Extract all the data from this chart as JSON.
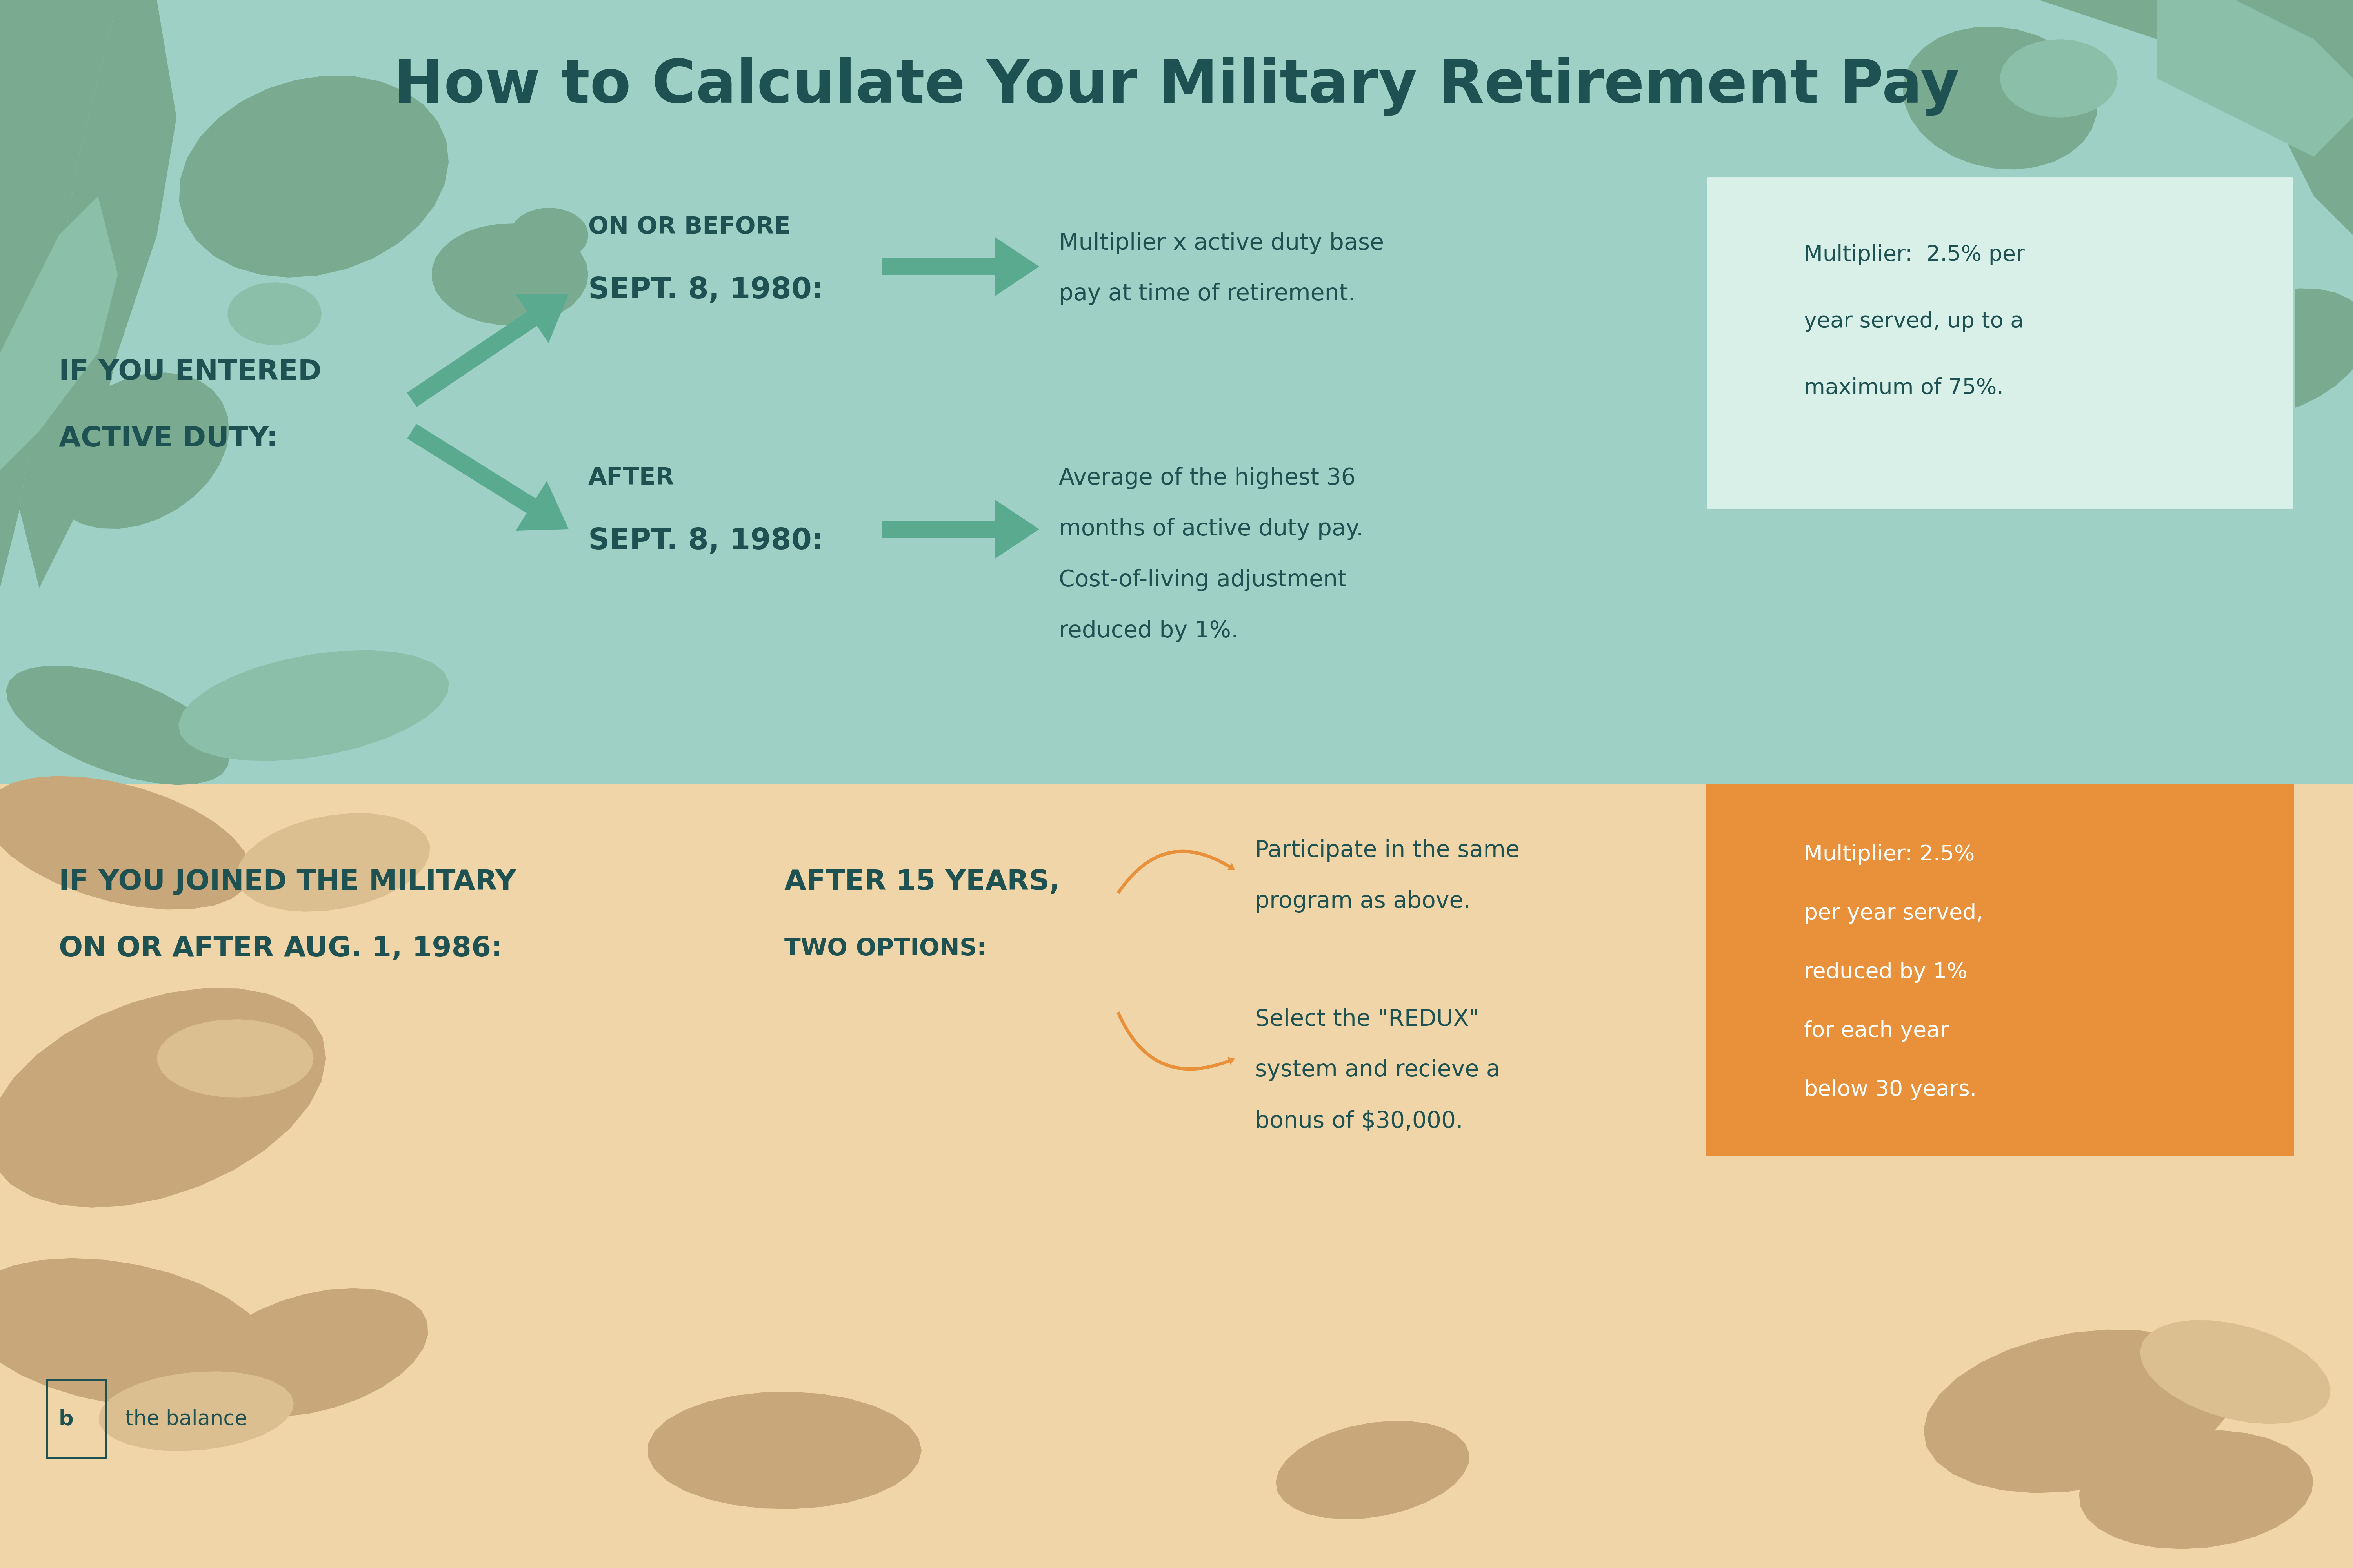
{
  "title": "How to Calculate Your Military Retirement Pay",
  "title_color": "#1e5252",
  "title_fontsize": 110,
  "bg_top_color": "#9ed0c5",
  "bg_bottom_color": "#f0d5a8",
  "camo_top_dark": "#7aaa90",
  "camo_top_light": "#8bbfaa",
  "camo_bottom_dark": "#c8a87a",
  "camo_bottom_light": "#dbbf90",
  "text_dark": "#1e5252",
  "arrow_green": "#5aaa90",
  "arrow_orange": "#e8903a",
  "box_green_bg": "#d8f0e8",
  "box_green_border": "#9ed0c5",
  "box_orange_bg": "#e8903a",
  "box_orange_text": "#ffffff",
  "top_label_line1": "If you entered",
  "top_label_line2": "active duty:",
  "branch1_small": "On or before",
  "branch1_big": "Sept. 8, 1980:",
  "branch2_small": "After",
  "branch2_big": "Sept. 8, 1980:",
  "result1_line1": "Multiplier x active duty base",
  "result1_line2": "pay at time of retirement.",
  "result2_line1": "Average of the highest 36",
  "result2_line2": "months of active duty pay.",
  "result2_line3": "Cost-of-living adjustment",
  "result2_line4": "reduced by 1%.",
  "top_box_line1": "Multiplier:  2.5% per",
  "top_box_line2": "year served, up to a",
  "top_box_line3": "maximum of 75%.",
  "bottom_label_line1": "If you joined the military",
  "bottom_label_line2": "on or after Aug. 1, 1986:",
  "bottom_branch_line1": "After 15 years,",
  "bottom_branch_line2": "two options:",
  "option1_line1": "Participate in the same",
  "option1_line2": "program as above.",
  "option2_line1": "Select the \"REDUX\"",
  "option2_line2": "system and recieve a",
  "option2_line3": "bonus of $30,000.",
  "bottom_box_line1": "Multiplier: 2.5%",
  "bottom_box_line2": "per year served,",
  "bottom_box_line3": "reduced by 1%",
  "bottom_box_line4": "for each year",
  "bottom_box_line5": "below 30 years.",
  "logo_text": "the balance"
}
